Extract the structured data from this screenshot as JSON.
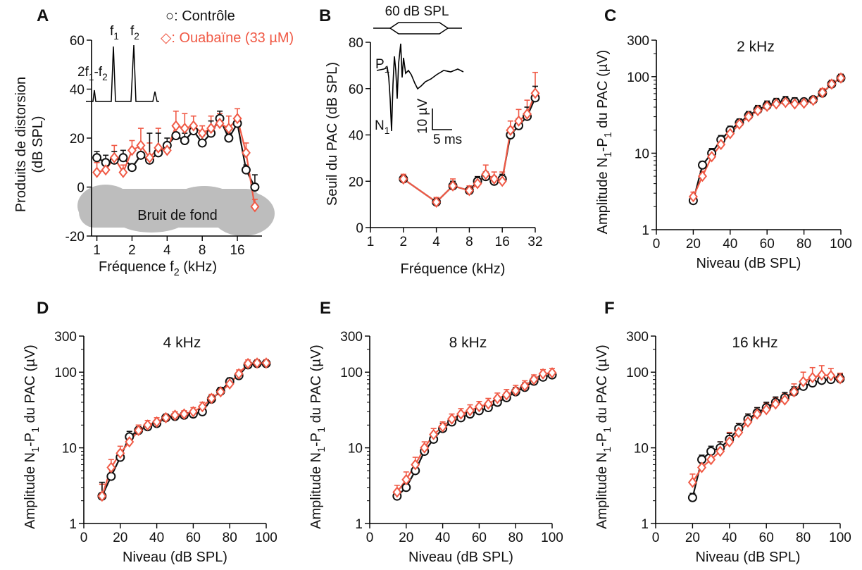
{
  "colors": {
    "control": "#111111",
    "ouabain": "#f05a46",
    "noise": "#bdbdbd"
  },
  "legend": {
    "control": "○: Contrôle",
    "ouabain": "◇: Ouabaïne (33 µM)"
  },
  "chart_data": [
    {
      "panel": "A",
      "type": "line",
      "x_scale": "log2",
      "xlabel": "Fréquence f",
      "xlabel_sub": "2",
      "xlabel_unit": " (kHz)",
      "ylabel_line1": "Produits de distorsion",
      "ylabel_line2": "(dB SPL)",
      "xlim": [
        0.9,
        26
      ],
      "ylim": [
        -20,
        60
      ],
      "xticks": [
        1,
        2,
        4,
        8,
        16
      ],
      "xticklabels": [
        "1",
        "2",
        "4",
        "8",
        "16"
      ],
      "yticks": [
        -20,
        0,
        20,
        40,
        60
      ],
      "yticklabels": [
        "-20",
        "0",
        "20",
        "40",
        "60"
      ],
      "noise_label": "Bruit de fond",
      "inset_labels": {
        "f1": "f",
        "f1_sub": "1",
        "f2": "f",
        "f2_sub": "2",
        "dp": "2f",
        "dp_sub1": "1",
        "dp_mid": "-f",
        "dp_sub2": "2"
      },
      "series": [
        {
          "name": "Contrôle",
          "x": [
            1,
            1.19,
            1.41,
            1.68,
            2,
            2.38,
            2.83,
            3.36,
            4,
            4.76,
            5.66,
            6.73,
            8,
            9.51,
            11.3,
            13.5,
            16,
            19,
            22.6
          ],
          "y": [
            12,
            10,
            11,
            12,
            8,
            13,
            11,
            14,
            17,
            21,
            19,
            23,
            18,
            22,
            28,
            20,
            26,
            7,
            0
          ],
          "err": [
            2.5,
            3,
            3.5,
            3,
            1.5,
            3,
            11,
            8,
            3,
            4,
            3,
            2,
            3,
            5,
            3,
            2,
            2,
            2,
            5
          ]
        },
        {
          "name": "Ouabaïne (33 µM)",
          "x": [
            1,
            1.19,
            1.41,
            1.68,
            2,
            2.38,
            2.83,
            3.36,
            4,
            4.76,
            5.66,
            6.73,
            8,
            9.51,
            11.3,
            13.5,
            16,
            19,
            22.6
          ],
          "y": [
            6,
            7,
            12,
            6,
            15,
            17,
            12,
            16,
            15,
            25,
            24,
            25,
            22,
            24,
            26,
            24,
            28,
            14,
            -8
          ],
          "err": [
            4,
            3,
            5,
            3,
            4,
            7,
            6,
            8,
            3,
            6,
            6,
            4,
            3,
            5,
            4,
            5,
            4,
            4,
            3
          ]
        }
      ]
    },
    {
      "panel": "B",
      "type": "line",
      "x_scale": "log2",
      "xlabel": "Fréquence (kHz)",
      "ylabel": "Seuil du PAC (dB SPL)",
      "xlim": [
        1,
        32
      ],
      "ylim": [
        0,
        80
      ],
      "xticks": [
        1,
        2,
        4,
        8,
        16,
        32
      ],
      "xticklabels": [
        "1",
        "2",
        "4",
        "8",
        "16",
        "32"
      ],
      "yticks": [
        0,
        20,
        40,
        60,
        80
      ],
      "yticklabels": [
        "0",
        "20",
        "40",
        "60",
        "80"
      ],
      "stimulus_label": "60 dB SPL",
      "inset_labels": {
        "p1": "P",
        "p1_sub": "1",
        "n1": "N",
        "n1_sub": "1",
        "amp": "10 µV",
        "time": "5 ms"
      },
      "series": [
        {
          "name": "Contrôle",
          "x": [
            2,
            4,
            5.66,
            8,
            9.51,
            11.3,
            13.5,
            16,
            19,
            22.6,
            27,
            32
          ],
          "y": [
            21,
            11,
            18,
            16,
            20,
            22,
            20,
            21,
            40,
            44,
            48,
            56
          ],
          "err": [
            1,
            1,
            2,
            1,
            2,
            2,
            2,
            2,
            3,
            3,
            4,
            5
          ]
        },
        {
          "name": "Ouabaïne (33 µM)",
          "x": [
            2,
            4,
            5.66,
            8,
            9.51,
            11.3,
            13.5,
            16,
            19,
            22.6,
            27,
            32
          ],
          "y": [
            21,
            11,
            18,
            16,
            19,
            23,
            21,
            20,
            42,
            46,
            49,
            58
          ],
          "err": [
            2,
            2,
            3,
            2,
            3,
            4,
            3,
            4,
            4,
            5,
            6,
            9
          ]
        }
      ]
    },
    {
      "panel": "C",
      "type": "line",
      "y_scale": "log",
      "title": "2 kHz",
      "xlabel": "Niveau (dB SPL)",
      "xlim": [
        0,
        100
      ],
      "ylim": [
        1,
        300
      ],
      "xticks": [
        0,
        20,
        40,
        60,
        80,
        100
      ],
      "xticklabels": [
        "0",
        "20",
        "40",
        "60",
        "80",
        "100"
      ],
      "yticks": [
        1,
        10,
        100,
        300
      ],
      "yticklabels": [
        "1",
        "10",
        "100",
        "300"
      ],
      "series": [
        {
          "name": "Contrôle",
          "x": [
            20,
            25,
            30,
            35,
            40,
            45,
            50,
            55,
            60,
            65,
            70,
            75,
            80,
            85,
            90,
            95,
            100
          ],
          "y": [
            2.4,
            7,
            10,
            15,
            20,
            25,
            31,
            37,
            42,
            46,
            48,
            47,
            47,
            50,
            61,
            80,
            96
          ],
          "err": [
            0.3,
            0.8,
            1.5,
            2,
            2.5,
            3,
            4,
            5,
            6,
            6,
            7,
            6,
            5,
            5,
            7,
            9,
            11
          ]
        },
        {
          "name": "Ouabaïne (33 µM)",
          "x": [
            20,
            25,
            30,
            35,
            40,
            45,
            50,
            55,
            60,
            65,
            70,
            75,
            80,
            85,
            90,
            95,
            100
          ],
          "y": [
            2.7,
            5,
            9,
            13,
            18,
            24,
            30,
            36,
            41,
            44,
            46,
            44,
            45,
            49,
            62,
            80,
            96
          ],
          "err": [
            0.4,
            0.8,
            1.2,
            2,
            2.5,
            3,
            4,
            5,
            6,
            6,
            7,
            6,
            5,
            6,
            8,
            10,
            12
          ]
        }
      ]
    },
    {
      "panel": "D",
      "type": "line",
      "y_scale": "log",
      "title": "4 kHz",
      "xlabel": "Niveau (dB SPL)",
      "xlim": [
        0,
        100
      ],
      "ylim": [
        1,
        300
      ],
      "xticks": [
        0,
        20,
        40,
        60,
        80,
        100
      ],
      "xticklabels": [
        "0",
        "20",
        "40",
        "60",
        "80",
        "100"
      ],
      "yticks": [
        1,
        10,
        100,
        300
      ],
      "yticklabels": [
        "1",
        "10",
        "100",
        "300"
      ],
      "series": [
        {
          "name": "Contrôle",
          "x": [
            10,
            15,
            20,
            25,
            30,
            35,
            40,
            45,
            50,
            55,
            60,
            65,
            70,
            75,
            80,
            85,
            90,
            95,
            100
          ],
          "y": [
            2.3,
            4.2,
            7.5,
            14,
            17,
            19,
            21,
            25,
            26,
            27,
            28,
            30,
            44,
            56,
            75,
            90,
            125,
            130,
            130
          ],
          "err": [
            1.2,
            1,
            1.5,
            2.5,
            2,
            2,
            2,
            2.5,
            2.5,
            3,
            3,
            4,
            5,
            7,
            9,
            10,
            12,
            12,
            12
          ]
        },
        {
          "name": "Ouabaïne (33 µM)",
          "x": [
            10,
            15,
            20,
            25,
            30,
            35,
            40,
            45,
            50,
            55,
            60,
            65,
            70,
            75,
            80,
            85,
            90,
            95,
            100
          ],
          "y": [
            2.3,
            5.5,
            8.5,
            12,
            17,
            20,
            22,
            25,
            27,
            28,
            30,
            35,
            45,
            55,
            70,
            95,
            130,
            132,
            132
          ],
          "err": [
            1,
            1.5,
            2,
            2.5,
            3,
            3,
            3,
            3,
            3,
            3,
            4,
            5,
            6,
            7,
            8,
            12,
            15,
            14,
            14
          ]
        }
      ]
    },
    {
      "panel": "E",
      "type": "line",
      "y_scale": "log",
      "title": "8 kHz",
      "xlabel": "Niveau (dB SPL)",
      "xlim": [
        0,
        100
      ],
      "ylim": [
        1,
        300
      ],
      "xticks": [
        0,
        20,
        40,
        60,
        80,
        100
      ],
      "xticklabels": [
        "0",
        "20",
        "40",
        "60",
        "80",
        "100"
      ],
      "yticks": [
        1,
        10,
        100,
        300
      ],
      "yticklabels": [
        "1",
        "10",
        "100",
        "300"
      ],
      "series": [
        {
          "name": "Contrôle",
          "x": [
            15,
            20,
            25,
            30,
            35,
            40,
            45,
            50,
            55,
            60,
            65,
            70,
            75,
            80,
            85,
            90,
            95,
            100
          ],
          "y": [
            2.3,
            3,
            5,
            9,
            13,
            18,
            22,
            25,
            28,
            31,
            34,
            40,
            46,
            55,
            63,
            76,
            86,
            92
          ],
          "err": [
            0.4,
            0.6,
            1,
            1.5,
            2,
            3,
            3,
            4,
            4,
            5,
            5,
            6,
            7,
            8,
            9,
            10,
            11,
            12
          ]
        },
        {
          "name": "Ouabaïne (33 µM)",
          "x": [
            15,
            20,
            25,
            30,
            35,
            40,
            45,
            50,
            55,
            60,
            65,
            70,
            75,
            80,
            85,
            90,
            95,
            100
          ],
          "y": [
            2.6,
            3.8,
            6,
            10,
            15,
            19,
            24,
            28,
            31,
            35,
            38,
            45,
            50,
            57,
            66,
            80,
            95,
            98
          ],
          "err": [
            0.6,
            1,
            1.5,
            2,
            3,
            3,
            4,
            5,
            6,
            6,
            7,
            8,
            9,
            10,
            11,
            12,
            13,
            14
          ]
        }
      ]
    },
    {
      "panel": "F",
      "type": "line",
      "y_scale": "log",
      "title": "16 kHz",
      "xlabel": "Niveau (dB SPL)",
      "xlim": [
        0,
        100
      ],
      "ylim": [
        1,
        300
      ],
      "xticks": [
        0,
        20,
        40,
        60,
        80,
        100
      ],
      "xticklabels": [
        "0",
        "20",
        "40",
        "60",
        "80",
        "100"
      ],
      "yticks": [
        1,
        10,
        100,
        300
      ],
      "yticklabels": [
        "1",
        "10",
        "100",
        "300"
      ],
      "series": [
        {
          "name": "Contrôle",
          "x": [
            20,
            25,
            30,
            35,
            40,
            45,
            50,
            55,
            60,
            65,
            70,
            75,
            80,
            85,
            90,
            95,
            100
          ],
          "y": [
            2.2,
            7,
            9,
            10,
            13,
            18,
            24,
            29,
            34,
            40,
            46,
            55,
            65,
            72,
            78,
            80,
            82
          ],
          "err": [
            0.3,
            1,
            1.5,
            2,
            2.5,
            3,
            4,
            5,
            6,
            7,
            8,
            9,
            10,
            11,
            12,
            12,
            12
          ]
        },
        {
          "name": "Ouabaïne (33 µM)",
          "x": [
            20,
            25,
            30,
            35,
            40,
            45,
            50,
            55,
            60,
            65,
            70,
            75,
            80,
            85,
            90,
            95,
            100
          ],
          "y": [
            3.5,
            5.5,
            7,
            9,
            12,
            16,
            22,
            28,
            32,
            38,
            43,
            55,
            75,
            85,
            92,
            90,
            82
          ],
          "err": [
            1,
            1.5,
            2,
            3,
            4,
            5,
            6,
            6,
            7,
            8,
            9,
            15,
            25,
            30,
            30,
            22,
            15
          ]
        }
      ]
    }
  ]
}
